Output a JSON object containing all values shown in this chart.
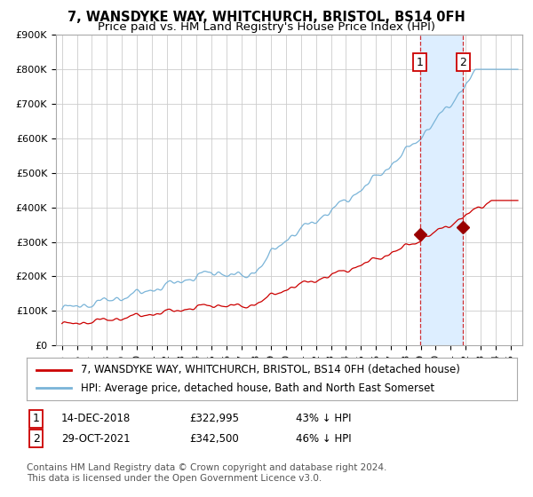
{
  "title1": "7, WANSDYKE WAY, WHITCHURCH, BRISTOL, BS14 0FH",
  "title2": "Price paid vs. HM Land Registry's House Price Index (HPI)",
  "ylim": [
    0,
    900000
  ],
  "yticks": [
    0,
    100000,
    200000,
    300000,
    400000,
    500000,
    600000,
    700000,
    800000,
    900000
  ],
  "ytick_labels": [
    "£0",
    "£100K",
    "£200K",
    "£300K",
    "£400K",
    "£500K",
    "£600K",
    "£700K",
    "£800K",
    "£900K"
  ],
  "hpi_color": "#7ab4d8",
  "price_color": "#cc0000",
  "marker_color": "#990000",
  "vline1_color": "#cc0000",
  "vline2_color": "#cc0000",
  "shade_color": "#ddeeff",
  "grid_color": "#cccccc",
  "bg_color": "#ffffff",
  "sale1_date_num": 2018.96,
  "sale1_price": 322995,
  "sale2_date_num": 2021.83,
  "sale2_price": 342500,
  "legend_label_red": "7, WANSDYKE WAY, WHITCHURCH, BRISTOL, BS14 0FH (detached house)",
  "legend_label_blue": "HPI: Average price, detached house, Bath and North East Somerset",
  "title1_fontsize": 10.5,
  "title2_fontsize": 9.5,
  "tick_fontsize": 8,
  "legend_fontsize": 8.5,
  "ann_fontsize": 8.5,
  "copyright_fontsize": 7.5
}
